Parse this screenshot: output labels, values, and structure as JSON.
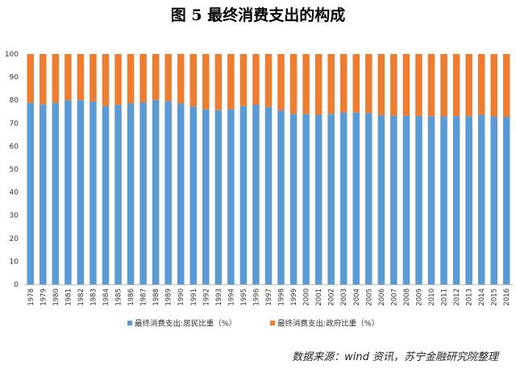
{
  "title": "图 5    最终消费支出的构成",
  "source": "数据来源：wind 资讯，苏宁金融研究院整理",
  "colors": {
    "household": "#5b9bd5",
    "government": "#ed7d31",
    "axis": "#bfbfbf",
    "text": "#333333"
  },
  "chart_data": {
    "type": "bar",
    "stacked": true,
    "categories": [
      "1978",
      "1979",
      "1980",
      "1981",
      "1982",
      "1983",
      "1984",
      "1985",
      "1986",
      "1987",
      "1988",
      "1989",
      "1990",
      "1991",
      "1992",
      "1993",
      "1994",
      "1995",
      "1996",
      "1997",
      "1998",
      "1999",
      "2000",
      "2001",
      "2002",
      "2003",
      "2004",
      "2005",
      "2006",
      "2007",
      "2008",
      "2009",
      "2010",
      "2011",
      "2012",
      "2013",
      "2014",
      "2015",
      "2016"
    ],
    "series": [
      {
        "name": "最终消费支出:居民比重（%）",
        "values": [
          78.9,
          78.1,
          78.9,
          79.9,
          80.0,
          79.4,
          77.4,
          78.0,
          78.5,
          79.0,
          80.0,
          79.6,
          78.5,
          77.2,
          76.0,
          75.6,
          76.0,
          77.4,
          78.0,
          77.0,
          75.5,
          74.0,
          73.9,
          73.6,
          74.0,
          74.6,
          74.6,
          74.4,
          73.4,
          73.2,
          73.2,
          73.1,
          73.0,
          72.9,
          73.0,
          73.0,
          73.6,
          72.9,
          72.7
        ]
      },
      {
        "name": "最终消费支出:政府比重（%）",
        "values": [
          21.1,
          21.9,
          21.1,
          20.1,
          20.0,
          20.6,
          22.6,
          22.0,
          21.5,
          21.0,
          20.0,
          20.4,
          21.5,
          22.8,
          24.0,
          24.4,
          24.0,
          22.6,
          22.0,
          23.0,
          24.5,
          26.0,
          26.1,
          26.4,
          26.0,
          25.4,
          25.4,
          25.6,
          26.6,
          26.8,
          26.8,
          26.9,
          27.0,
          27.1,
          27.0,
          27.0,
          26.4,
          27.1,
          27.3
        ]
      }
    ],
    "y_ticks": [
      "0",
      "10",
      "20",
      "30",
      "40",
      "50",
      "60",
      "70",
      "80",
      "90",
      "100"
    ],
    "ylim": [
      0,
      100
    ],
    "grid": false,
    "legend_position": "bottom"
  }
}
